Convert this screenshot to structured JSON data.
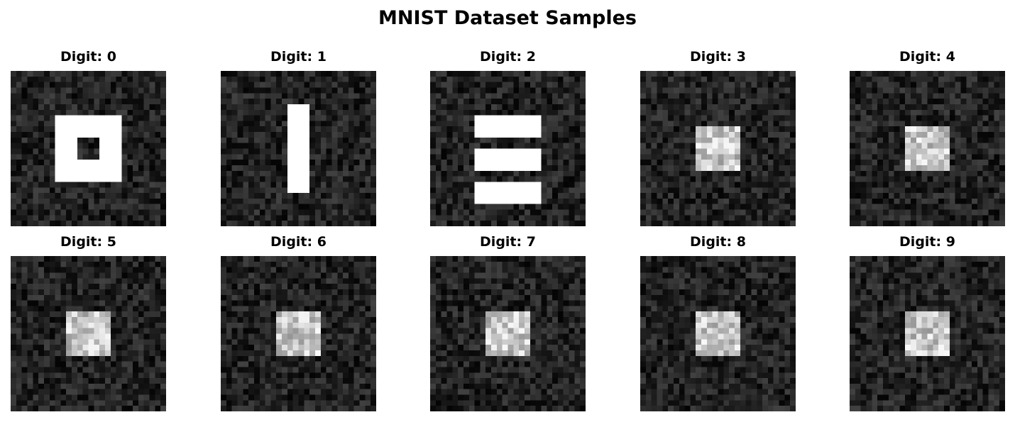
{
  "figure": {
    "title": "MNIST Dataset Samples"
  },
  "samples": [
    {
      "label": "Digit: 0",
      "pattern": "ring"
    },
    {
      "label": "Digit: 1",
      "pattern": "vertical-bar"
    },
    {
      "label": "Digit: 2",
      "pattern": "three-horizontal-bars"
    },
    {
      "label": "Digit: 3",
      "pattern": "noisy-center-square"
    },
    {
      "label": "Digit: 4",
      "pattern": "noisy-center-square"
    },
    {
      "label": "Digit: 5",
      "pattern": "noisy-center-square"
    },
    {
      "label": "Digit: 6",
      "pattern": "noisy-center-square"
    },
    {
      "label": "Digit: 7",
      "pattern": "noisy-center-square"
    },
    {
      "label": "Digit: 8",
      "pattern": "noisy-center-square"
    },
    {
      "label": "Digit: 9",
      "pattern": "noisy-center-square"
    }
  ],
  "colormap": "gray"
}
